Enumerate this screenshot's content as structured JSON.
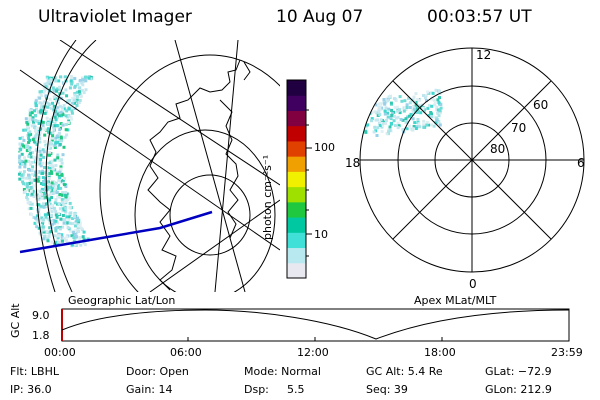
{
  "header": {
    "instrument": "Ultraviolet Imager",
    "date": "10 Aug 07",
    "time": "00:03:57 UT"
  },
  "colorbar": {
    "unit_label": "photon cm⁻²s⁻¹",
    "tick_100": "100",
    "tick_10": "10",
    "colors": [
      "#e8e8f0",
      "#b8e8f0",
      "#40e0d8",
      "#00c8a0",
      "#20c840",
      "#a0e000",
      "#f0f000",
      "#f0a000",
      "#e04000",
      "#c00000",
      "#800040",
      "#400060",
      "#200040"
    ]
  },
  "left_panel": {
    "label": "Geographic Lat/Lon"
  },
  "right_panel": {
    "label": "Apex MLat/MLT",
    "mlt_12": "12",
    "mlt_18": "18",
    "mlt_6": "6",
    "mlt_0": "0",
    "lat_60": "60",
    "lat_70": "70",
    "lat_80": "80"
  },
  "altitude_plot": {
    "ylabel": "GC Alt",
    "y_top": "9.0",
    "y_bottom": "1.8",
    "x_ticks": [
      "00:00",
      "06:00",
      "12:00",
      "18:00",
      "23:59"
    ]
  },
  "status": {
    "filter": "Flt: LBHL",
    "ip": "IP: 36.0",
    "door": "Door: Open",
    "gain": "Gain: 14",
    "mode": "Mode: Normal",
    "dsp_label": "Dsp:",
    "dsp_value": "5.5",
    "gc_alt": "GC Alt: 5.4 Re",
    "seq": "Seq: 39",
    "glat": "GLat: −72.9",
    "glon": "GLon: 212.9"
  }
}
